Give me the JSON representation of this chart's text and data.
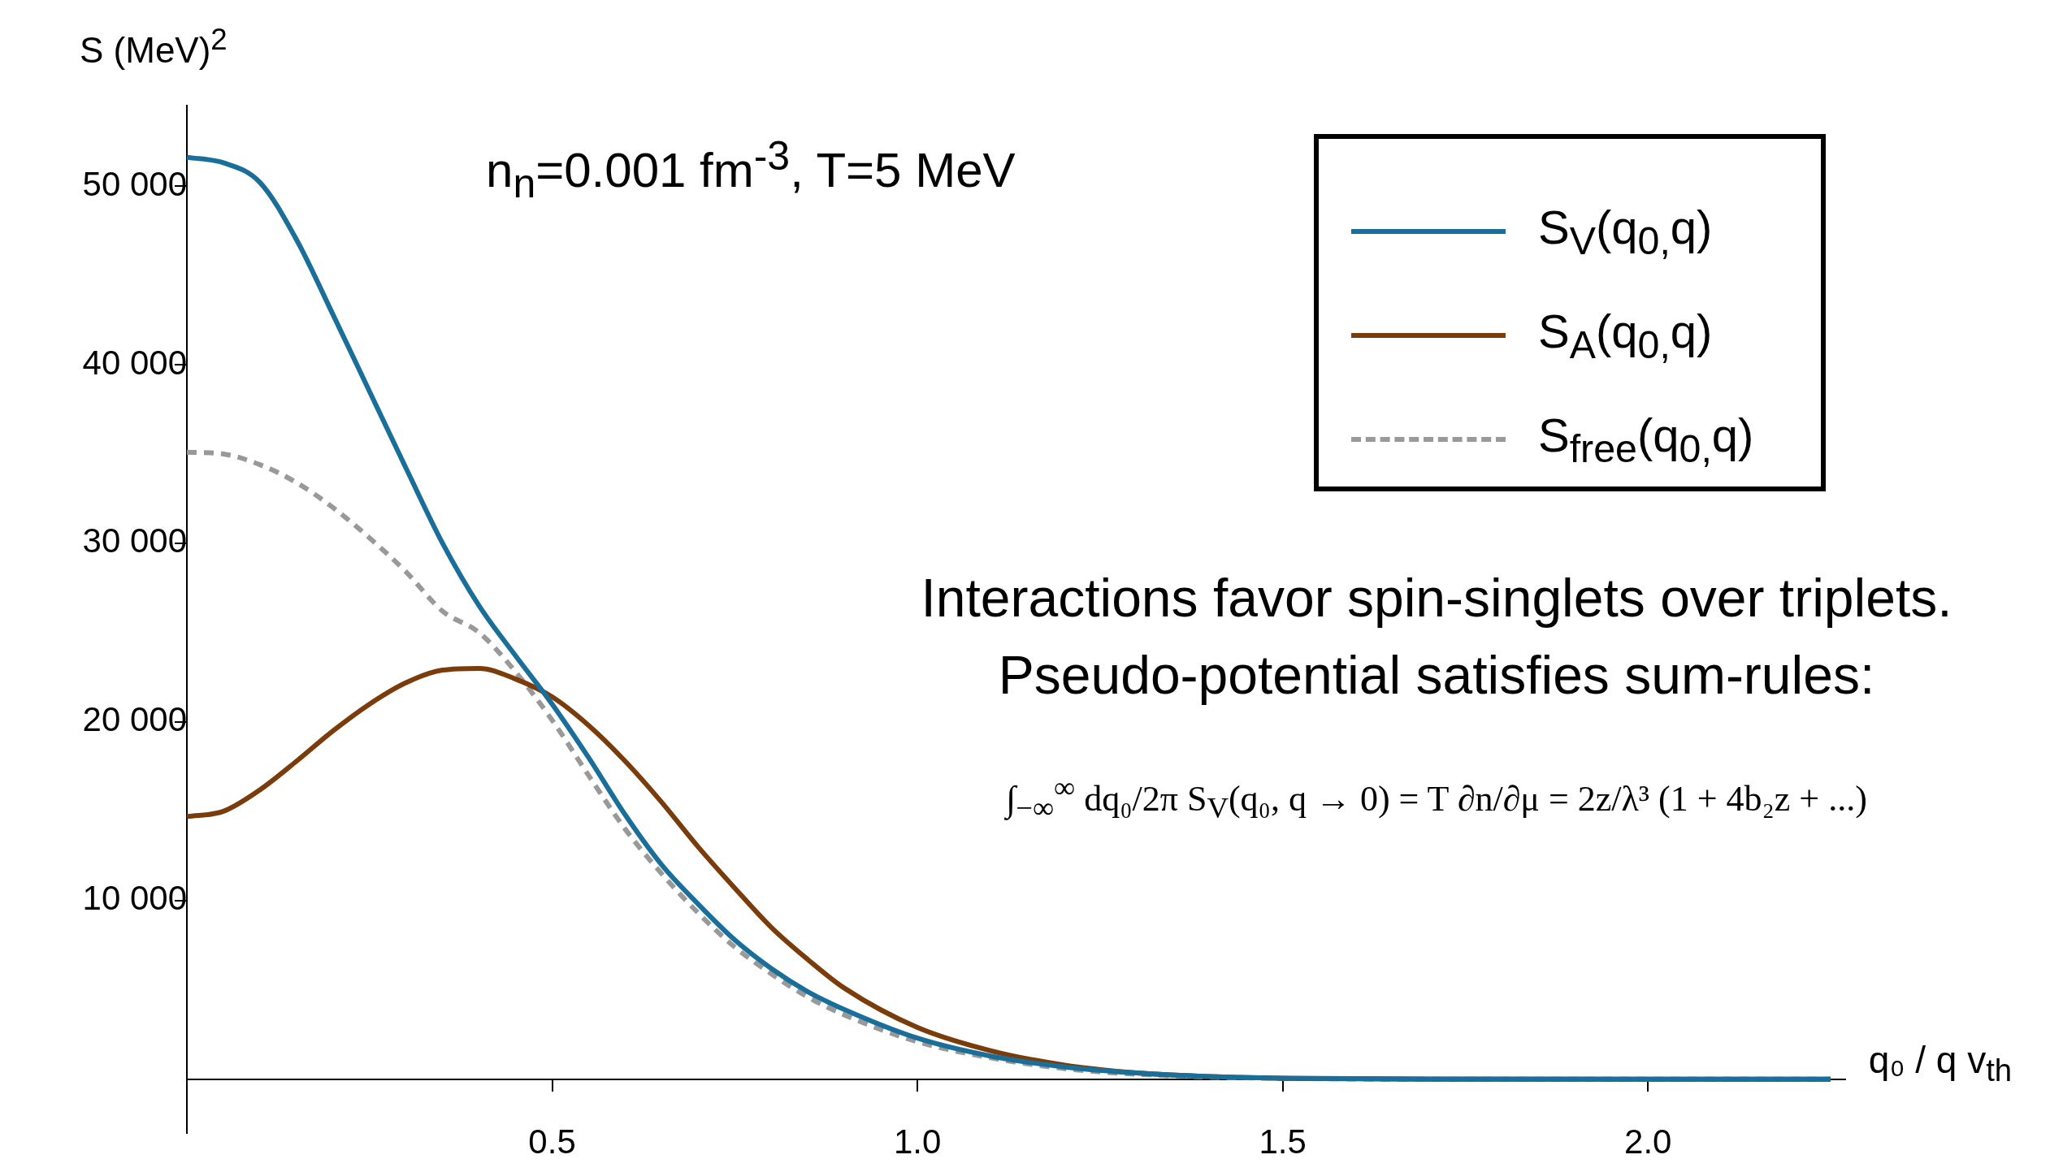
{
  "chart_data": {
    "type": "line",
    "title": "n$_{n}$=0.001 fm$^{-3}$, T=5 MeV",
    "xlabel": "q₀ / q v$_{th}$",
    "ylabel": "S (MeV)$^{2}$",
    "x": [
      0,
      0.05,
      0.1,
      0.15,
      0.2,
      0.25,
      0.3,
      0.35,
      0.4,
      0.45,
      0.5,
      0.55,
      0.6,
      0.65,
      0.7,
      0.75,
      0.8,
      0.85,
      0.9,
      1.0,
      1.1,
      1.2,
      1.3,
      1.4,
      1.5,
      1.7,
      2.0,
      2.25
    ],
    "series": [
      {
        "name": "S$_{V}$(q$_{0,}$q)",
        "color": "#1a6e9a",
        "line_style": "solid",
        "values": [
          51600,
          51300,
          50200,
          47000,
          42800,
          38500,
          34200,
          30000,
          26500,
          23700,
          21000,
          18000,
          14800,
          12000,
          9800,
          7800,
          6200,
          4900,
          3900,
          2300,
          1300,
          700,
          350,
          150,
          60,
          10,
          0,
          0
        ]
      },
      {
        "name": "S$_{A}$(q$_{0,}$q)",
        "color": "#7a3c0a",
        "line_style": "solid",
        "values": [
          14700,
          15000,
          16200,
          17800,
          19500,
          21000,
          22200,
          22900,
          23000,
          22400,
          21400,
          19800,
          17800,
          15500,
          13000,
          10700,
          8500,
          6700,
          5100,
          2900,
          1600,
          800,
          350,
          150,
          50,
          0,
          0,
          0
        ]
      },
      {
        "name": "S$_{free}$(q$_{0,}$q)",
        "color": "#999999",
        "line_style": "dashed",
        "values": [
          35100,
          35000,
          34400,
          33400,
          32000,
          30300,
          28400,
          26200,
          25000,
          22800,
          20100,
          17000,
          14000,
          11500,
          9300,
          7400,
          5900,
          4600,
          3600,
          2100,
          1200,
          600,
          280,
          120,
          50,
          0,
          0,
          0
        ]
      }
    ],
    "xlim": [
      0,
      2.27
    ],
    "ylim": [
      -3000,
      54500
    ],
    "xticks": [
      0.5,
      {
        "value": 1,
        "label": "1.0"
      },
      1.5,
      {
        "value": 2,
        "label": "2.0"
      }
    ],
    "yticks": [
      {
        "value": 10000,
        "label": "10 000"
      },
      {
        "value": 20000,
        "label": "20 000"
      },
      {
        "value": 30000,
        "label": "30 000"
      },
      {
        "value": 40000,
        "label": "40 000"
      },
      {
        "value": 50000,
        "label": "50 000"
      }
    ],
    "grid": false,
    "legend": "top right",
    "marker": "none",
    "annotations": [
      "Interactions favor spin-singlets over triplets.",
      "Pseudo-potential satisfies sum-rules:",
      "∫$_{−∞}$$^{∞}$ dq₀/2π S$_{V}$(q₀, q → 0) = T ∂n/∂μ = 2z/λ³ (1 + 4b₂z + ...)"
    ]
  }
}
